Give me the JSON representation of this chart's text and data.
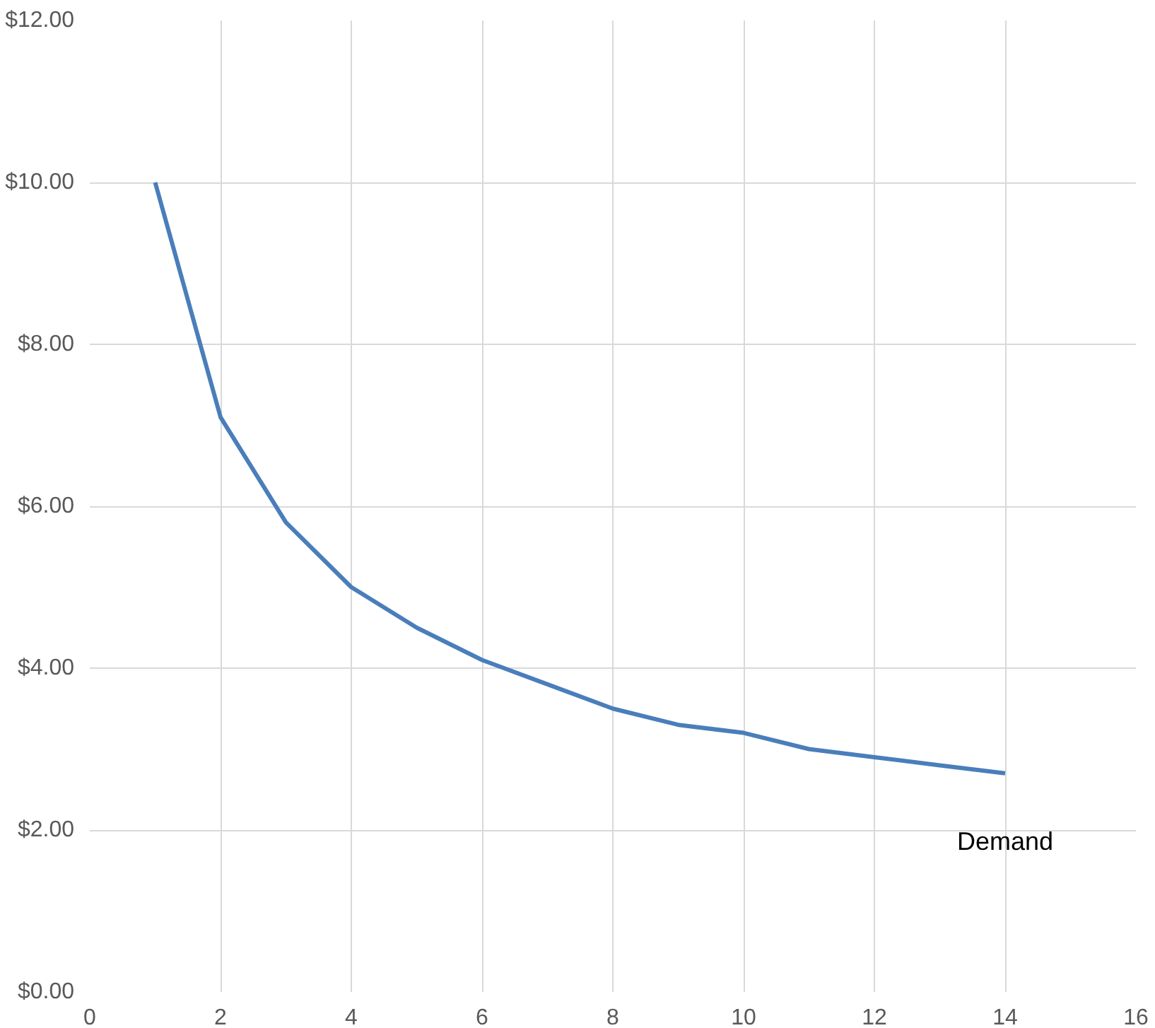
{
  "chart_data": {
    "type": "line",
    "x": [
      1,
      2,
      3,
      4,
      5,
      6,
      7,
      8,
      9,
      10,
      11,
      12,
      13,
      14
    ],
    "series": [
      {
        "color": "#4a7ebb",
        "values": [
          10,
          7.1,
          5.8,
          5.0,
          4.5,
          4.1,
          3.8,
          3.5,
          3.3,
          3.2,
          3.0,
          2.9,
          2.8,
          2.7
        ]
      }
    ],
    "xlim": [
      0,
      16
    ],
    "xticks": [
      0,
      2,
      4,
      6,
      8,
      10,
      12,
      14,
      16
    ],
    "ylim": [
      0,
      12
    ],
    "yticks": [
      {
        "value": 0,
        "label": "$0.00"
      },
      {
        "value": 2,
        "label": "$2.00"
      },
      {
        "value": 4,
        "label": "$4.00"
      },
      {
        "value": 6,
        "label": "$6.00"
      },
      {
        "value": 8,
        "label": "$8.00"
      },
      {
        "value": 10,
        "label": "$10.00"
      },
      {
        "value": 12,
        "label": "$12.00"
      }
    ],
    "grid": true,
    "marker": "none",
    "line_style": "solid",
    "annotations": [
      {
        "text": "Demand",
        "x": 14,
        "y": 2.7
      }
    ]
  }
}
